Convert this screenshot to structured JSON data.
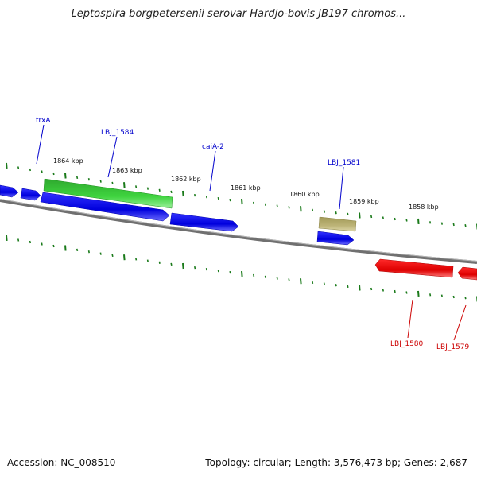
{
  "title": "Leptospira borgpetersenii serovar Hardjo-bovis JB197 chromos...",
  "footer": {
    "accession": "Accession: NC_008510",
    "summary": "Topology: circular; Length: 3,576,473 bp; Genes: 2,687"
  },
  "kbp_labels": [
    "1864 kbp",
    "1863 kbp",
    "1862 kbp",
    "1861 kbp",
    "1860 kbp",
    "1859 kbp",
    "1858 kbp"
  ],
  "genes_forward_labels": [
    "trxA",
    "LBJ_1584",
    "caiA-2",
    "LBJ_1581"
  ],
  "genes_reverse_labels": [
    "LBJ_1580",
    "LBJ_1579"
  ],
  "colors": {
    "strand_forward": "#0000e6",
    "strand_reverse": "#e60000",
    "highlight_green": "#33cc33",
    "highlight_tan": "#b8b070",
    "ticks": "#1a7a1a",
    "backbone": "#707070"
  }
}
